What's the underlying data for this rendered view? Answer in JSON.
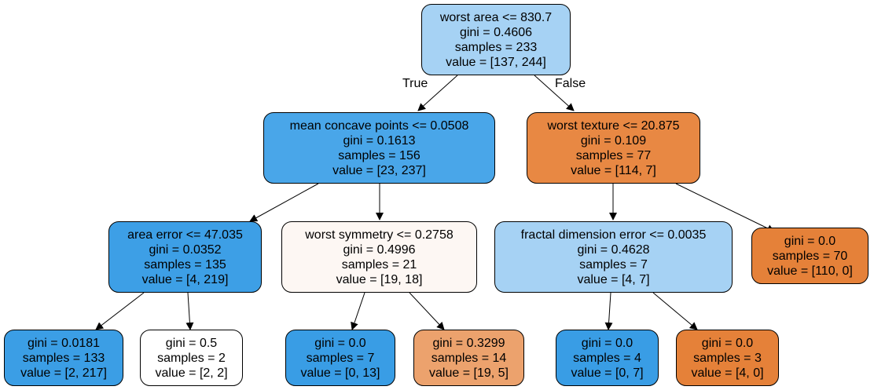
{
  "tree": {
    "edge_labels": {
      "true_label": "True",
      "false_label": "False"
    },
    "colors": {
      "blue_light": "#a6d2f4",
      "blue_mid": "#49a6e9",
      "blue_strong": "#3d9fe6",
      "blue_full": "#399de5",
      "orange_mid": "#e88843",
      "orange_full": "#e58139",
      "orange_light": "#ec9e67",
      "near_white": "#fdf7f3",
      "white": "#ffffff"
    },
    "nodes": [
      {
        "id": "n0",
        "split": "worst area <= 830.7",
        "gini": "gini = 0.4606",
        "samples": "samples = 233",
        "value": "value = [137, 244]",
        "color": "#a6d2f4"
      },
      {
        "id": "n1",
        "split": "mean concave points <= 0.0508",
        "gini": "gini = 0.1613",
        "samples": "samples = 156",
        "value": "value = [23, 237]",
        "color": "#49a6e9"
      },
      {
        "id": "n2",
        "split": "worst texture <= 20.875",
        "gini": "gini = 0.109",
        "samples": "samples = 77",
        "value": "value = [114, 7]",
        "color": "#e88843"
      },
      {
        "id": "n3",
        "split": "area error <= 47.035",
        "gini": "gini = 0.0352",
        "samples": "samples = 135",
        "value": "value = [4, 219]",
        "color": "#3d9fe6"
      },
      {
        "id": "n4",
        "split": "worst symmetry <= 0.2758",
        "gini": "gini = 0.4996",
        "samples": "samples = 21",
        "value": "value = [19, 18]",
        "color": "#fdf7f3"
      },
      {
        "id": "n5",
        "split": "fractal dimension error <= 0.0035",
        "gini": "gini = 0.4628",
        "samples": "samples = 7",
        "value": "value = [4, 7]",
        "color": "#a6d2f4"
      },
      {
        "id": "n6",
        "gini": "gini = 0.0",
        "samples": "samples = 70",
        "value": "value = [110, 0]",
        "color": "#e58139"
      },
      {
        "id": "n7",
        "gini": "gini = 0.0181",
        "samples": "samples = 133",
        "value": "value = [2, 217]",
        "color": "#3b9ee5"
      },
      {
        "id": "n8",
        "gini": "gini = 0.5",
        "samples": "samples = 2",
        "value": "value = [2, 2]",
        "color": "#ffffff"
      },
      {
        "id": "n9",
        "gini": "gini = 0.0",
        "samples": "samples = 7",
        "value": "value = [0, 13]",
        "color": "#399de5"
      },
      {
        "id": "n10",
        "gini": "gini = 0.3299",
        "samples": "samples = 14",
        "value": "value = [19, 5]",
        "color": "#eca26d"
      },
      {
        "id": "n11",
        "gini": "gini = 0.0",
        "samples": "samples = 4",
        "value": "value = [0, 7]",
        "color": "#399de5"
      },
      {
        "id": "n12",
        "gini": "gini = 0.0",
        "samples": "samples = 3",
        "value": "value = [4, 0]",
        "color": "#e58139"
      }
    ]
  }
}
